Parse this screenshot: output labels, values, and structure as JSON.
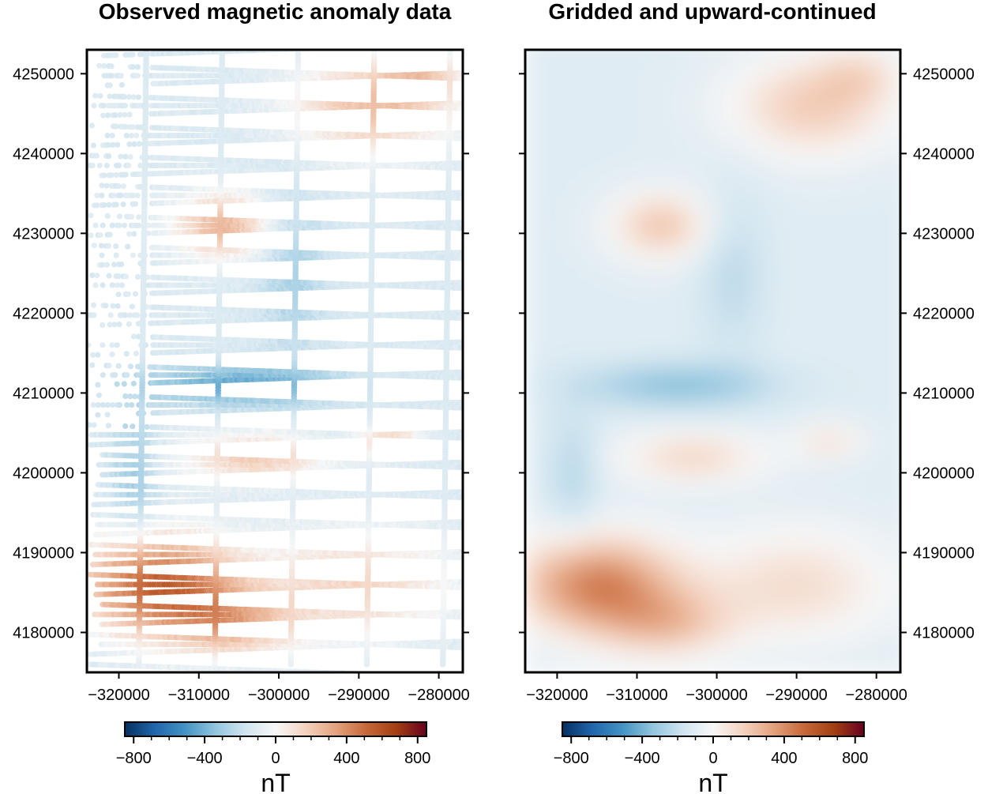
{
  "chart_data": [
    {
      "type": "scatter",
      "title": "Observed magnetic anomaly data",
      "xlim": [
        -324000,
        -277000
      ],
      "ylim": [
        4175000,
        4253000
      ],
      "xticks": [
        -320000,
        -310000,
        -300000,
        -290000,
        -280000
      ],
      "yticks": [
        4180000,
        4190000,
        4200000,
        4210000,
        4220000,
        4230000,
        4240000,
        4250000
      ],
      "xtick_labels": [
        "−320000",
        "−310000",
        "−300000",
        "−290000",
        "−280000"
      ],
      "ytick_labels": [
        "4180000",
        "4190000",
        "4200000",
        "4210000",
        "4220000",
        "4230000",
        "4240000",
        "4250000"
      ],
      "ytick_side": "left",
      "colorbar": {
        "label": "nT",
        "range": [
          -850,
          850
        ],
        "ticks": [
          -800,
          -400,
          0,
          400,
          800
        ],
        "tick_labels": [
          "−800",
          "−400",
          "0",
          "400",
          "800"
        ]
      },
      "colormap": [
        "#053061",
        "#2166ac",
        "#4393c3",
        "#92c5de",
        "#d1e5f0",
        "#f7f7f7",
        "#f4d2bf",
        "#e3a27e",
        "#c7683a",
        "#a33f12",
        "#67001f"
      ]
    },
    {
      "type": "heatmap",
      "title": "Gridded and upward-continued",
      "xlim": [
        -324000,
        -277000
      ],
      "ylim": [
        4175000,
        4253000
      ],
      "xticks": [
        -320000,
        -310000,
        -300000,
        -290000,
        -280000
      ],
      "yticks": [
        4180000,
        4190000,
        4200000,
        4210000,
        4220000,
        4230000,
        4240000,
        4250000
      ],
      "xtick_labels": [
        "−320000",
        "−310000",
        "−300000",
        "−290000",
        "−280000"
      ],
      "ytick_labels": [
        "4180000",
        "4190000",
        "4200000",
        "4210000",
        "4220000",
        "4230000",
        "4240000",
        "4250000"
      ],
      "ytick_side": "right",
      "colorbar": {
        "label": "nT",
        "range": [
          -850,
          850
        ],
        "ticks": [
          -800,
          -400,
          0,
          400,
          800
        ],
        "tick_labels": [
          "−800",
          "−400",
          "0",
          "400",
          "800"
        ]
      },
      "colormap": [
        "#053061",
        "#2166ac",
        "#4393c3",
        "#92c5de",
        "#d1e5f0",
        "#f7f7f7",
        "#f4d2bf",
        "#e3a27e",
        "#c7683a",
        "#a33f12",
        "#67001f"
      ]
    }
  ]
}
